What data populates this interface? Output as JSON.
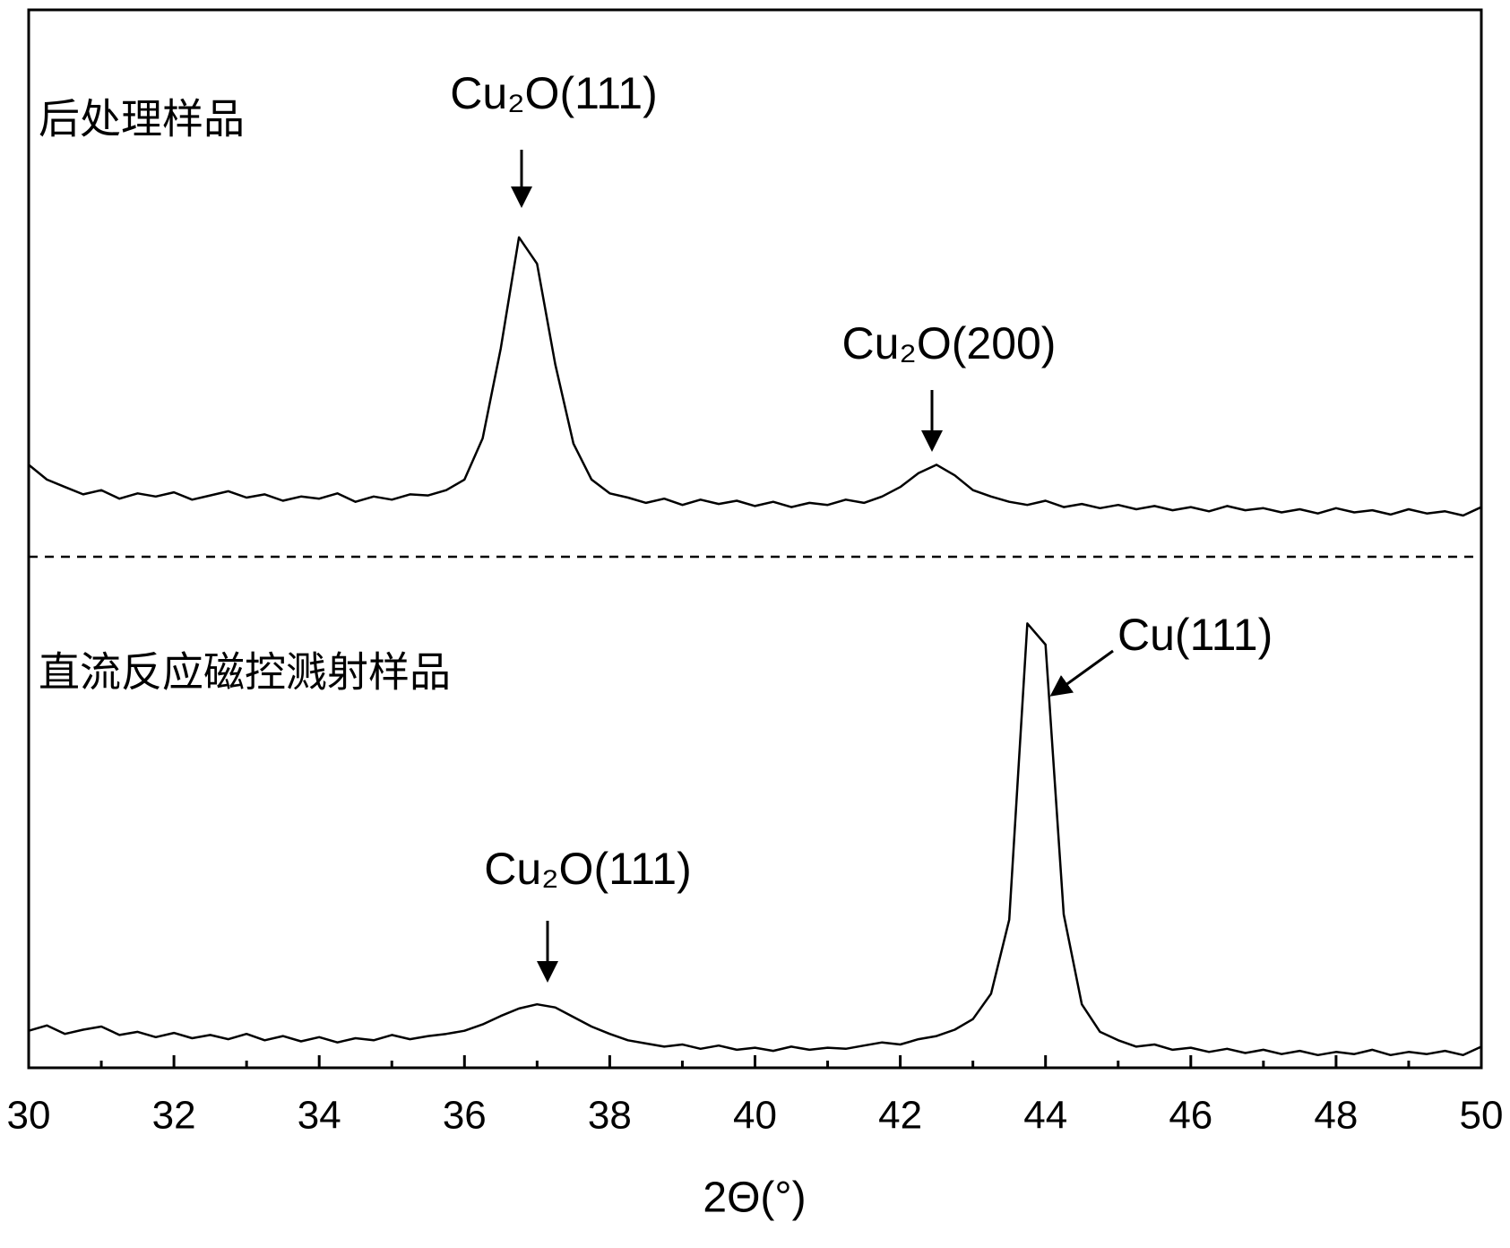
{
  "chart_data": {
    "type": "line",
    "x": [
      30,
      30.25,
      30.5,
      30.75,
      31,
      31.25,
      31.5,
      31.75,
      32,
      32.25,
      32.5,
      32.75,
      33,
      33.25,
      33.5,
      33.75,
      34,
      34.25,
      34.5,
      34.75,
      35,
      35.25,
      35.5,
      35.75,
      36,
      36.25,
      36.5,
      36.75,
      37,
      37.25,
      37.5,
      37.75,
      38,
      38.25,
      38.5,
      38.75,
      39,
      39.25,
      39.5,
      39.75,
      40,
      40.25,
      40.5,
      40.75,
      41,
      41.25,
      41.5,
      41.75,
      42,
      42.25,
      42.5,
      42.75,
      43,
      43.25,
      43.5,
      43.75,
      44,
      44.25,
      44.5,
      44.75,
      45,
      45.25,
      45.5,
      45.75,
      46,
      46.25,
      46.5,
      46.75,
      47,
      47.25,
      47.5,
      47.75,
      48,
      48.25,
      48.5,
      48.75,
      49,
      49.25,
      49.5,
      49.75,
      50
    ],
    "series": [
      {
        "name": "后处理样品",
        "color": "#000000",
        "values": [
          57.0,
          55.6,
          54.9,
          54.2,
          54.6,
          53.8,
          54.3,
          54.0,
          54.4,
          53.7,
          54.1,
          54.5,
          53.9,
          54.2,
          53.6,
          54.0,
          53.8,
          54.3,
          53.5,
          54.0,
          53.7,
          54.2,
          54.1,
          54.6,
          55.6,
          59.5,
          68.0,
          78.5,
          76.0,
          66.5,
          59.0,
          55.6,
          54.3,
          53.9,
          53.4,
          53.8,
          53.2,
          53.7,
          53.3,
          53.6,
          53.1,
          53.5,
          53.0,
          53.4,
          53.2,
          53.7,
          53.4,
          54.0,
          54.9,
          56.2,
          57.0,
          56.0,
          54.6,
          54.0,
          53.5,
          53.2,
          53.6,
          53.0,
          53.3,
          52.9,
          53.2,
          52.8,
          53.1,
          52.7,
          53.0,
          52.6,
          53.1,
          52.7,
          52.9,
          52.5,
          52.8,
          52.4,
          52.9,
          52.5,
          52.7,
          52.3,
          52.8,
          52.4,
          52.6,
          52.2,
          53.0
        ]
      },
      {
        "name": "直流反应磁控溅射样品",
        "color": "#000000",
        "values": [
          3.5,
          4.0,
          3.2,
          3.6,
          3.9,
          3.1,
          3.4,
          2.9,
          3.3,
          2.8,
          3.1,
          2.7,
          3.2,
          2.6,
          3.0,
          2.5,
          2.9,
          2.4,
          2.8,
          2.6,
          3.1,
          2.7,
          3.0,
          3.2,
          3.5,
          4.1,
          4.9,
          5.6,
          6.0,
          5.7,
          4.8,
          3.9,
          3.2,
          2.6,
          2.3,
          2.0,
          2.2,
          1.8,
          2.1,
          1.7,
          1.9,
          1.6,
          2.0,
          1.7,
          1.9,
          1.8,
          2.1,
          2.4,
          2.2,
          2.7,
          3.0,
          3.6,
          4.6,
          7.0,
          14.0,
          42.0,
          40.0,
          14.5,
          6.0,
          3.4,
          2.6,
          2.0,
          2.2,
          1.7,
          1.9,
          1.5,
          1.8,
          1.4,
          1.7,
          1.3,
          1.6,
          1.2,
          1.5,
          1.3,
          1.7,
          1.2,
          1.5,
          1.3,
          1.6,
          1.2,
          2.0
        ]
      }
    ],
    "annotations": [
      "Cu₂O(111)",
      "Cu₂O(200)",
      "Cu₂O(111)",
      "Cu(111)"
    ],
    "xlabel": "2Θ(°)",
    "xlim": [
      30,
      50
    ],
    "xticks": [
      30,
      32,
      34,
      36,
      38,
      40,
      42,
      44,
      46,
      48,
      50
    ],
    "xminorticks": [
      31,
      33,
      35,
      37,
      39,
      41,
      43,
      45,
      47,
      49
    ],
    "ylim": [
      0,
      100
    ]
  }
}
